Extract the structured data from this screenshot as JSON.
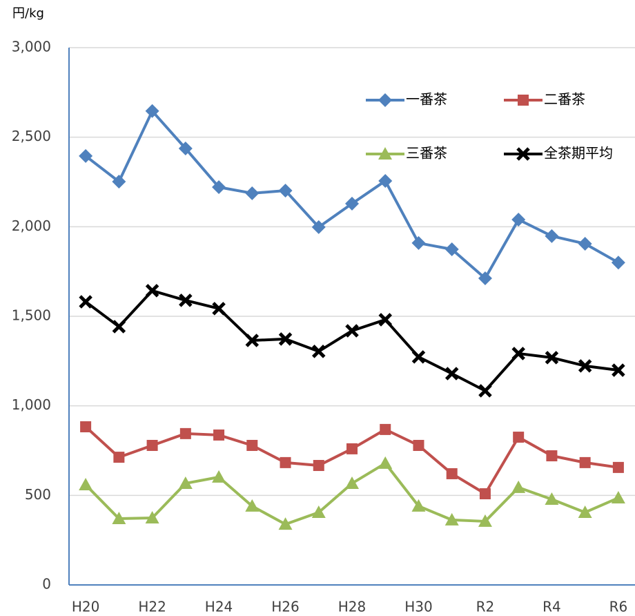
{
  "chart_data": {
    "type": "line",
    "y_label": "円/kg",
    "categories": [
      "H20",
      null,
      "H22",
      null,
      "H24",
      null,
      "H26",
      null,
      "H28",
      null,
      "H30",
      null,
      "R2",
      null,
      "R4",
      null,
      "R6"
    ],
    "series": [
      {
        "name": "一番茶",
        "color": "#4f81bd",
        "marker": "diamond",
        "values": [
          2395,
          2252,
          2646,
          2437,
          2221,
          2187,
          2202,
          1998,
          2129,
          2256,
          1909,
          1874,
          1712,
          2040,
          1948,
          1905,
          1800
        ]
      },
      {
        "name": "二番茶",
        "color": "#c0504d",
        "marker": "square",
        "values": [
          883,
          713,
          779,
          845,
          837,
          779,
          683,
          667,
          760,
          868,
          779,
          621,
          509,
          825,
          721,
          683,
          656
        ]
      },
      {
        "name": "三番茶",
        "color": "#9bbb59",
        "marker": "triangle",
        "values": [
          559,
          370,
          374,
          567,
          602,
          440,
          339,
          405,
          567,
          679,
          440,
          363,
          355,
          544,
          478,
          405,
          486
        ]
      },
      {
        "name": "全茶期平均",
        "color": "#000000",
        "marker": "x",
        "values": [
          1581,
          1442,
          1643,
          1589,
          1543,
          1365,
          1373,
          1304,
          1419,
          1481,
          1273,
          1180,
          1084,
          1292,
          1269,
          1223,
          1199
        ]
      }
    ],
    "ylim": [
      0,
      3000
    ],
    "yticks": [
      0,
      500,
      {
        "value": 1000,
        "label": "1,000"
      },
      {
        "value": 1500,
        "label": "1,500"
      },
      {
        "value": 2000,
        "label": "2,000"
      },
      {
        "value": 2500,
        "label": "2,500"
      },
      {
        "value": 3000,
        "label": "3,000"
      }
    ],
    "grid": true,
    "legend": "top-right"
  }
}
